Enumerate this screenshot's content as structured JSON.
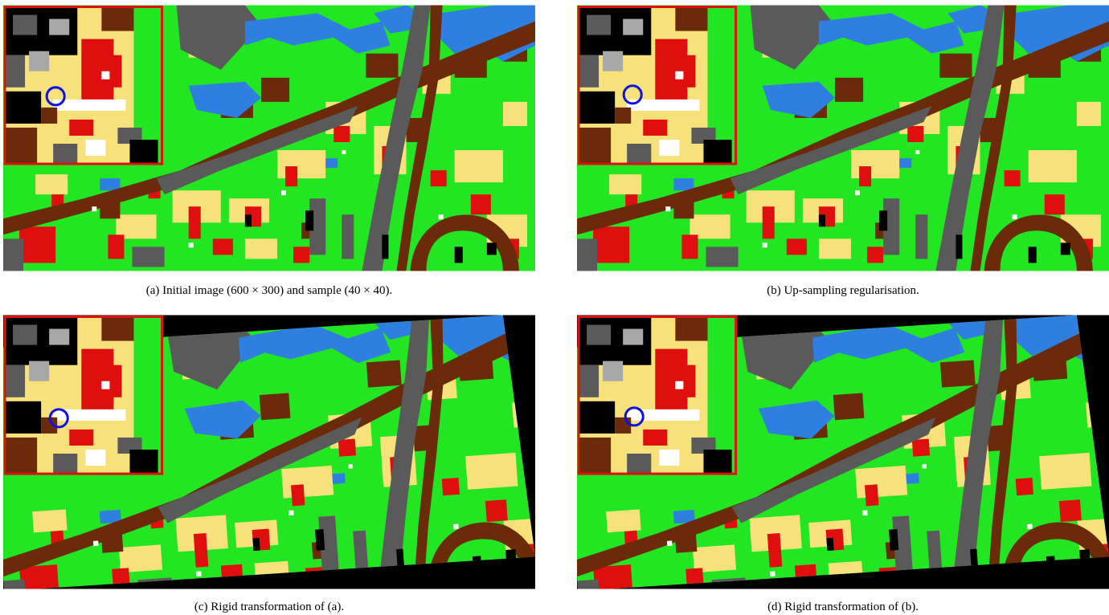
{
  "figure": {
    "panels": [
      {
        "id": "a",
        "caption": "(a) Initial image (600 × 300) and sample (40 × 40)."
      },
      {
        "id": "b",
        "caption": "(b) Up-sampling regularisation."
      },
      {
        "id": "c",
        "caption": "(c) Rigid transformation of (a)."
      },
      {
        "id": "d",
        "caption": "(d) Rigid transformation of (b)."
      }
    ]
  },
  "palette": {
    "vegetation": "#22e622",
    "road": "#5a5a5a",
    "water": "#2e7fe0",
    "soil": "#6b2a0a",
    "building": "#e00f0f",
    "bare": "#f7e17a",
    "shadow": "#000000",
    "white": "#ffffff",
    "light_grey": "#a8a8a8",
    "inset_border": "#e01010",
    "marker_circle": "#1010e0"
  }
}
